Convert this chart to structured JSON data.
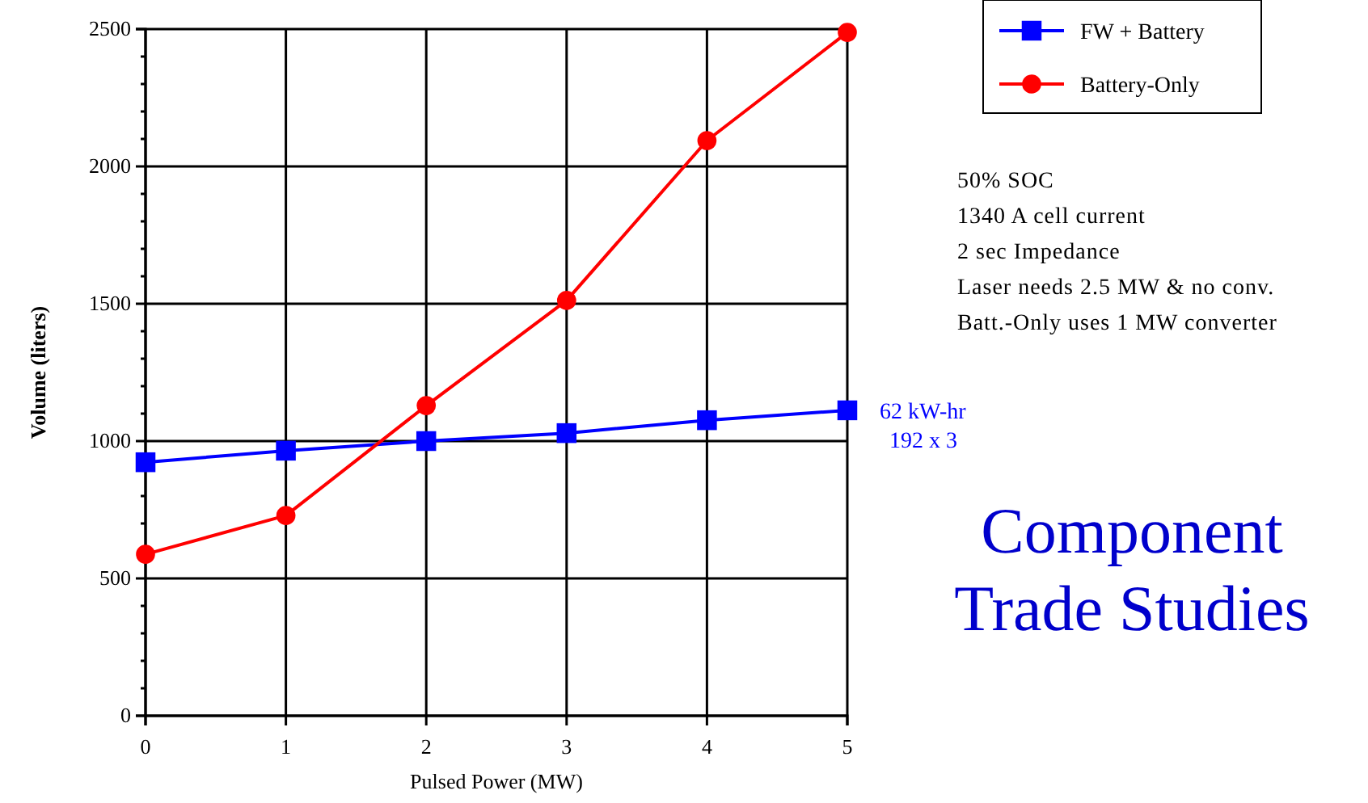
{
  "chart_data": {
    "type": "line",
    "xlabel": "Pulsed Power (MW)",
    "ylabel": "Volume (liters)",
    "x": [
      0,
      1,
      2,
      3,
      4,
      5
    ],
    "series": [
      {
        "name": "FW + Battery",
        "color": "#0000ff",
        "marker": "square",
        "values": [
          923,
          965,
          1000,
          1029,
          1076,
          1112
        ]
      },
      {
        "name": "Battery-Only",
        "color": "#ff0000",
        "marker": "circle",
        "values": [
          588,
          729,
          1129,
          1512,
          2094,
          2488
        ]
      }
    ],
    "xlim": [
      0,
      5
    ],
    "xticks": [
      0,
      1,
      2,
      3,
      4,
      5
    ],
    "ylim": [
      0,
      2500
    ],
    "yticks": [
      0,
      500,
      1000,
      1500,
      2000,
      2500
    ],
    "grid": true,
    "legend": "top right",
    "annotations": [
      "50% SOC\n1340 A cell current\n2 sec Impedance\nLaser needs 2.5 MW & no conv.\nBatt.-Only uses 1 MW converter",
      {
        "text": "62 kW-hr\n192 x 3",
        "x": 5,
        "y": 1112
      },
      "Component\nTrade Studies"
    ]
  }
}
